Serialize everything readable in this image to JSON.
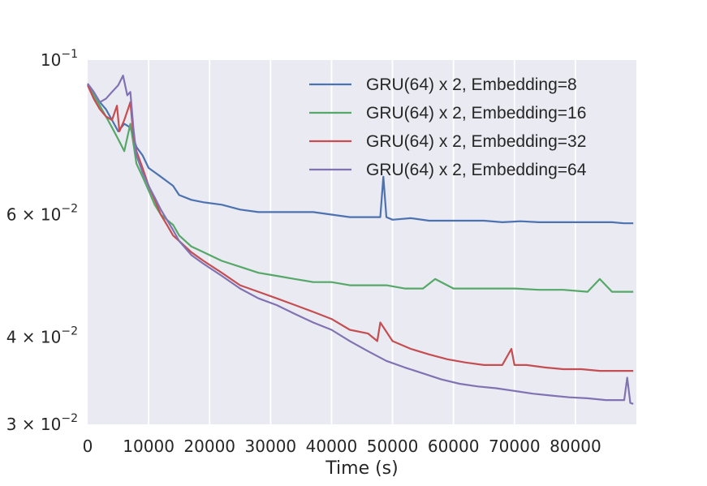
{
  "chart_data": {
    "type": "line",
    "title": "",
    "xlabel": "Time (s)",
    "ylabel": "",
    "xlim": [
      0,
      90000
    ],
    "ylim": [
      0.03,
      0.1
    ],
    "yscale": "log",
    "grid": true,
    "legend_position": "top-right",
    "x_ticks": [
      0,
      10000,
      20000,
      30000,
      40000,
      50000,
      60000,
      70000,
      80000
    ],
    "x_tick_labels": [
      "0",
      "10000",
      "20000",
      "30000",
      "40000",
      "50000",
      "60000",
      "70000",
      "80000"
    ],
    "y_ticks": [
      0.1,
      0.06,
      0.04,
      0.03
    ],
    "y_tick_labels": [
      {
        "mant": "10",
        "exp": "−1"
      },
      {
        "mant": "6 × 10",
        "exp": "−2"
      },
      {
        "mant": "4 × 10",
        "exp": "−2"
      },
      {
        "mant": "3 × 10",
        "exp": "−2"
      }
    ],
    "series": [
      {
        "name": "GRU(64) x 2, Embedding=8",
        "color": "#4c72b0",
        "x": [
          0,
          1000,
          2000,
          3000,
          4000,
          5000,
          6000,
          7000,
          8000,
          9000,
          10000,
          11000,
          12000,
          13000,
          14000,
          15000,
          17000,
          19000,
          22000,
          25000,
          28000,
          31000,
          34000,
          37000,
          40000,
          43000,
          46000,
          48000,
          48500,
          49000,
          50000,
          53000,
          56000,
          59000,
          62000,
          65000,
          68000,
          71000,
          74000,
          77000,
          80000,
          83000,
          86000,
          88000,
          89500
        ],
        "y": [
          0.0925,
          0.09,
          0.087,
          0.085,
          0.082,
          0.079,
          0.081,
          0.08,
          0.075,
          0.073,
          0.07,
          0.069,
          0.068,
          0.067,
          0.066,
          0.064,
          0.063,
          0.0625,
          0.062,
          0.061,
          0.0605,
          0.0605,
          0.0605,
          0.0605,
          0.06,
          0.0595,
          0.0595,
          0.0595,
          0.068,
          0.0595,
          0.059,
          0.0593,
          0.0588,
          0.0588,
          0.0588,
          0.0588,
          0.0585,
          0.0587,
          0.0585,
          0.0585,
          0.0585,
          0.0585,
          0.0585,
          0.0583,
          0.0583
        ]
      },
      {
        "name": "GRU(64) x 2, Embedding=16",
        "color": "#55a868",
        "x": [
          0,
          1000,
          2000,
          3000,
          4000,
          5000,
          6000,
          7000,
          8000,
          9000,
          10000,
          11000,
          12000,
          13000,
          14000,
          15000,
          17000,
          19000,
          22000,
          25000,
          28000,
          31000,
          34000,
          37000,
          40000,
          43000,
          46000,
          49000,
          52000,
          55000,
          57000,
          60000,
          63000,
          66000,
          70000,
          74000,
          78000,
          82000,
          84000,
          86000,
          88000,
          89500
        ],
        "y": [
          0.0925,
          0.089,
          0.086,
          0.083,
          0.08,
          0.077,
          0.074,
          0.081,
          0.071,
          0.068,
          0.065,
          0.062,
          0.06,
          0.059,
          0.058,
          0.056,
          0.054,
          0.053,
          0.0515,
          0.0505,
          0.0495,
          0.049,
          0.0485,
          0.048,
          0.048,
          0.0475,
          0.0475,
          0.0475,
          0.047,
          0.047,
          0.0485,
          0.047,
          0.047,
          0.047,
          0.047,
          0.0468,
          0.0468,
          0.0465,
          0.0485,
          0.0465,
          0.0465,
          0.0465
        ]
      },
      {
        "name": "GRU(64) x 2, Embedding=32",
        "color": "#c44e52",
        "x": [
          0,
          1000,
          2000,
          3000,
          4000,
          4800,
          5200,
          6000,
          7000,
          7500,
          8000,
          9000,
          10000,
          11000,
          12000,
          13000,
          14000,
          15000,
          17000,
          19000,
          22000,
          25000,
          28000,
          31000,
          34000,
          37000,
          40000,
          43000,
          46000,
          47500,
          48000,
          50000,
          53000,
          56000,
          59000,
          62000,
          65000,
          68000,
          69500,
          70000,
          72000,
          75000,
          78000,
          81000,
          84000,
          87000,
          89500
        ],
        "y": [
          0.092,
          0.088,
          0.085,
          0.083,
          0.082,
          0.086,
          0.079,
          0.082,
          0.087,
          0.078,
          0.074,
          0.07,
          0.066,
          0.063,
          0.06,
          0.058,
          0.056,
          0.055,
          0.053,
          0.0515,
          0.0495,
          0.0475,
          0.0465,
          0.0455,
          0.0445,
          0.0435,
          0.0425,
          0.041,
          0.0405,
          0.0395,
          0.042,
          0.0395,
          0.0385,
          0.0378,
          0.0372,
          0.0368,
          0.0365,
          0.0365,
          0.0385,
          0.0365,
          0.0365,
          0.0362,
          0.036,
          0.036,
          0.0358,
          0.0358,
          0.0358
        ]
      },
      {
        "name": "GRU(64) x 2, Embedding=64",
        "color": "#8172b2",
        "x": [
          0,
          1000,
          2000,
          3000,
          4000,
          5000,
          5800,
          6500,
          7000,
          7500,
          8000,
          9000,
          10000,
          11000,
          12000,
          13000,
          14000,
          15000,
          17000,
          19000,
          22000,
          25000,
          28000,
          31000,
          34000,
          37000,
          40000,
          43000,
          46000,
          49000,
          52000,
          55000,
          58000,
          61000,
          64000,
          67000,
          70000,
          73000,
          76000,
          79000,
          82000,
          85000,
          88000,
          88500,
          89000,
          89500
        ],
        "y": [
          0.0925,
          0.09,
          0.087,
          0.088,
          0.09,
          0.092,
          0.095,
          0.089,
          0.09,
          0.08,
          0.073,
          0.069,
          0.066,
          0.0635,
          0.061,
          0.059,
          0.057,
          0.055,
          0.0525,
          0.051,
          0.049,
          0.047,
          0.0455,
          0.0445,
          0.0432,
          0.042,
          0.041,
          0.0395,
          0.0382,
          0.037,
          0.0362,
          0.0355,
          0.0348,
          0.0343,
          0.034,
          0.0338,
          0.0335,
          0.0332,
          0.033,
          0.0328,
          0.0327,
          0.0325,
          0.0325,
          0.035,
          0.0322,
          0.0321
        ]
      }
    ]
  }
}
